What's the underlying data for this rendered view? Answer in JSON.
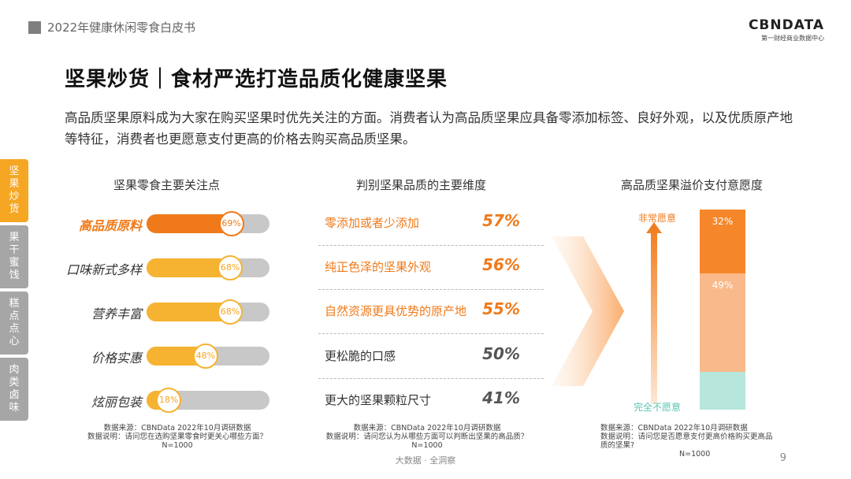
{
  "header": {
    "report_title": "2022年健康休闲零食白皮书"
  },
  "logo": {
    "name": "CBNDATA",
    "tagline": "第一财经商业数据中心"
  },
  "title": "坚果炒货｜食材严选打造品质化健康坚果",
  "description": "高品质坚果原料成为大家在购买坚果时优先关注的方面。消费者认为高品质坚果应具备零添加标签、良好外观，以及优质原产地等特征，消费者也更愿意支付更高的价格去购买高品质坚果。",
  "sidebar": {
    "tabs": [
      {
        "label": "坚果炒货",
        "active": true
      },
      {
        "label": "果干蜜饯",
        "active": false
      },
      {
        "label": "糕点点心",
        "active": false
      },
      {
        "label": "肉类卤味",
        "active": false
      }
    ]
  },
  "colors": {
    "accent_orange": "#f07a1a",
    "accent_yellow": "#f5b331",
    "track_gray": "#c8c8c8",
    "teal": "#b7e6dc",
    "light_orange": "#f9b98a"
  },
  "chart_data": [
    {
      "type": "bar",
      "title": "坚果零食主要关注点",
      "categories": [
        "高品质原料",
        "口味新式多样",
        "营养丰富",
        "价格实惠",
        "炫丽包装"
      ],
      "values": [
        69,
        68,
        68,
        48,
        18
      ],
      "value_labels": [
        "69%",
        "68%",
        "68%",
        "48%",
        "18%"
      ],
      "highlight": [
        "高品质原料"
      ],
      "unit": "%",
      "note_source": "数据来源：CBNData 2022年10月调研数据",
      "note_desc": "数据说明：请问您在选购坚果零食时更关心哪些方面？",
      "note_n": "N=1000"
    },
    {
      "type": "table",
      "title": "判别坚果品质的主要维度",
      "categories": [
        "零添加或者少添加",
        "纯正色泽的坚果外观",
        "自然资源更具优势的原产地",
        "更松脆的口感",
        "更大的坚果颗粒尺寸"
      ],
      "values": [
        57,
        56,
        55,
        50,
        41
      ],
      "value_labels": [
        "57%",
        "56%",
        "55%",
        "50%",
        "41%"
      ],
      "highlight": [
        "零添加或者少添加",
        "纯正色泽的坚果外观",
        "自然资源更具优势的原产地"
      ],
      "unit": "%",
      "note_source": "数据来源：CBNData 2022年10月调研数据",
      "note_desc": "数据说明：请问您认为从哪些方面可以判断出坚果的高品质？",
      "note_n": "N=1000"
    },
    {
      "type": "bar",
      "title": "高品质坚果溢价支付意愿度",
      "series": [
        {
          "values": [
            32
          ],
          "label": "32%",
          "color": "#f5872a"
        },
        {
          "values": [
            49
          ],
          "label": "49%",
          "color": "#f9b98a"
        },
        {
          "values": [
            19
          ],
          "label": "",
          "color": "#b7e6dc"
        }
      ],
      "stacked": true,
      "axis_top_label": "非常愿意",
      "axis_bottom_label": "完全不愿意",
      "unit": "%",
      "note_source": "数据来源：CBNData 2022年10月调研数据",
      "note_desc": "数据说明：请问您是否愿意支付更高价格购买更高品质的坚果?",
      "note_n": "N=1000"
    }
  ],
  "footer": {
    "slogan": "大数据 · 全洞察",
    "page_number": "9"
  }
}
